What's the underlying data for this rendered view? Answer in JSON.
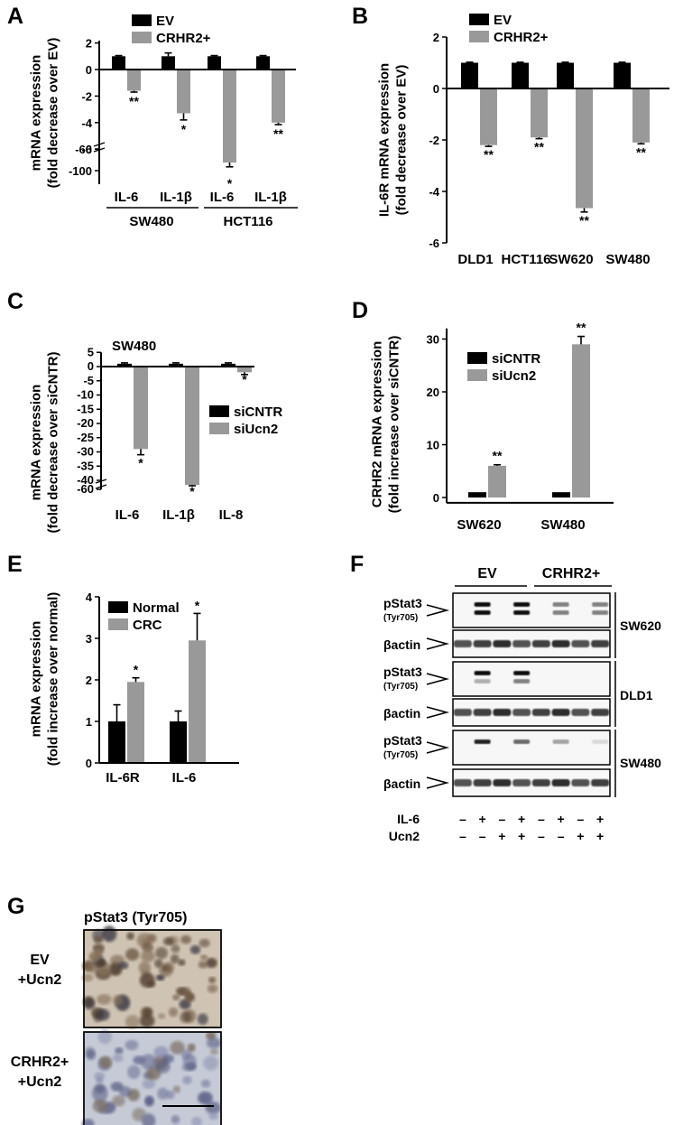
{
  "chart_data": [
    {
      "panel": "A",
      "type": "bar",
      "ylabel": [
        "mRNA expression",
        "(fold decrease over EV)"
      ],
      "groups": [
        {
          "label": "SW480",
          "categories": [
            "IL-6",
            "IL-1β"
          ]
        },
        {
          "label": "HCT116",
          "categories": [
            "IL-6",
            "IL-1β"
          ]
        }
      ],
      "categories": [
        "IL-6",
        "IL-1β",
        "IL-6",
        "IL-1β"
      ],
      "series": [
        {
          "name": "EV",
          "color": "#000000",
          "values": [
            1,
            1,
            1,
            1
          ],
          "err": [
            0.05,
            0.25,
            0.05,
            0.05
          ]
        },
        {
          "name": "CRHR2+",
          "color": "#999999",
          "values": [
            -1.6,
            -3.3,
            -85,
            -4.0
          ],
          "err": [
            0.1,
            0.5,
            8,
            0.15
          ]
        }
      ],
      "significance": [
        "**",
        "*",
        "*",
        "**"
      ],
      "yticks": [
        "2",
        "0",
        "-2",
        "-4",
        "-6",
        "-60",
        "-100"
      ],
      "ylim": [
        -100,
        2
      ]
    },
    {
      "panel": "B",
      "type": "bar",
      "ylabel": [
        "IL-6R mRNA expression",
        "(fold decrease over EV)"
      ],
      "categories": [
        "DLD1",
        "HCT116",
        "SW620",
        "SW480"
      ],
      "series": [
        {
          "name": "EV",
          "color": "#000000",
          "values": [
            1,
            1,
            1,
            1
          ],
          "err": [
            0.02,
            0.02,
            0.02,
            0.02
          ]
        },
        {
          "name": "CRHR2+",
          "color": "#999999",
          "values": [
            -2.2,
            -1.9,
            -4.65,
            -2.1
          ],
          "err": [
            0.05,
            0.05,
            0.15,
            0.05
          ]
        }
      ],
      "significance": [
        "**",
        "**",
        "**",
        "**"
      ],
      "yticks": [
        "2",
        "0",
        "-2",
        "-4",
        "-6"
      ],
      "ylim": [
        -6,
        2
      ]
    },
    {
      "panel": "C",
      "type": "bar",
      "title": "SW480",
      "ylabel": [
        "mRNA expression",
        "(fold decrease over siCNTR)"
      ],
      "categories": [
        "IL-6",
        "IL-1β",
        "IL-8"
      ],
      "series": [
        {
          "name": "siCNTR",
          "color": "#000000",
          "values": [
            1,
            1,
            1
          ],
          "err": [
            0.3,
            0.3,
            0.3
          ]
        },
        {
          "name": "siUcn2",
          "color": "#999999",
          "values": [
            -29,
            -50,
            -2
          ],
          "err": [
            2,
            2,
            0.8
          ]
        }
      ],
      "significance": [
        "*",
        "*",
        "*"
      ],
      "yticks": [
        "5",
        "0",
        "-5",
        "-10",
        "-15",
        "-20",
        "-25",
        "-30",
        "-35",
        "-40",
        "-60"
      ],
      "ylim": [
        -60,
        5
      ]
    },
    {
      "panel": "D",
      "type": "bar",
      "ylabel": [
        "CRHR2 mRNA expression",
        "(fold increase over siCNTR)"
      ],
      "categories": [
        "SW620",
        "SW480"
      ],
      "series": [
        {
          "name": "siCNTR",
          "color": "#000000",
          "values": [
            1,
            1
          ],
          "err": [
            0,
            0
          ]
        },
        {
          "name": "siUcn2",
          "color": "#999999",
          "values": [
            6,
            29
          ],
          "err": [
            0.2,
            1.5
          ]
        }
      ],
      "significance": [
        "**",
        "**"
      ],
      "yticks": [
        "0",
        "10",
        "20",
        "30"
      ],
      "ylim": [
        -1,
        32
      ]
    },
    {
      "panel": "E",
      "type": "bar",
      "ylabel": [
        "mRNA expression",
        "(fold increase over normal)"
      ],
      "categories": [
        "IL-6R",
        "IL-6"
      ],
      "series": [
        {
          "name": "Normal",
          "color": "#000000",
          "values": [
            1,
            1
          ],
          "err": [
            0.4,
            0.25
          ]
        },
        {
          "name": "CRC",
          "color": "#999999",
          "values": [
            1.95,
            2.95
          ],
          "err": [
            0.1,
            0.65
          ]
        }
      ],
      "significance": [
        "*",
        "*"
      ],
      "yticks": [
        "0",
        "1",
        "2",
        "3",
        "4"
      ],
      "ylim": [
        0,
        4
      ]
    }
  ],
  "panel_letters": {
    "a": "A",
    "b": "B",
    "c": "C",
    "d": "D",
    "e": "E",
    "f": "F",
    "g": "G"
  },
  "blot": {
    "groups": [
      "EV",
      "CRHR2+"
    ],
    "cell_lines": [
      "SW620",
      "DLD1",
      "SW480"
    ],
    "band_labels": {
      "pstat": "pStat3",
      "tyr": "(Tyr705)",
      "actin": "βactin"
    },
    "treatments": [
      {
        "name": "IL-6",
        "marks": [
          "–",
          "+",
          "–",
          "+",
          "–",
          "+",
          "–",
          "+"
        ]
      },
      {
        "name": "Ucn2",
        "marks": [
          "–",
          "–",
          "+",
          "+",
          "–",
          "–",
          "+",
          "+"
        ]
      }
    ]
  },
  "ihc": {
    "title": "pStat3 (Tyr705)",
    "rows": [
      [
        "EV",
        "+Ucn2"
      ],
      [
        "CRHR2+",
        "+Ucn2"
      ]
    ]
  }
}
